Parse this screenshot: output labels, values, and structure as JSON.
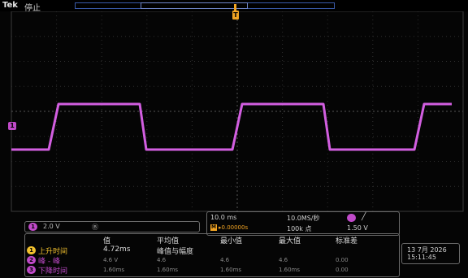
{
  "header": {
    "brand": "Tek",
    "run_state": "停止"
  },
  "markers": {
    "trigger_position": "T",
    "channel": "1"
  },
  "channel_readout": {
    "badge": "1",
    "scale": "2.0 V",
    "bandwidth": "Ⓑ"
  },
  "timebase": {
    "horizontal": "10.0 ms",
    "sample_rate": "10.0MS/秒",
    "trigger_badge": "1",
    "trigger_slope": "╱",
    "delay_icon": "M",
    "delay": "▸0.00000s",
    "record_length": "100k 点",
    "trigger_level": "1.50 V"
  },
  "measurements": {
    "headers": [
      "值",
      "平均值",
      "最小值",
      "最大值",
      "标准差"
    ],
    "rows": [
      {
        "badge": "1",
        "name": "上升时间",
        "values": [
          "4.72ms",
          "峰值与幅度",
          "",
          "",
          ""
        ],
        "channel_color": "#f2c12e"
      },
      {
        "badge": "2",
        "name": "峰 - 峰",
        "values": [
          "4.6 V",
          "4.6",
          "4.6",
          "4.6",
          "0.00"
        ],
        "channel_color": "#c04ac9"
      },
      {
        "badge": "3",
        "name": "下降时间",
        "values": [
          "1.60ms",
          "1.60ms",
          "1.60ms",
          "1.60ms",
          "0.00"
        ],
        "channel_color": "#c04ac9"
      }
    ]
  },
  "datetime": {
    "date": "13 7月 2026",
    "time": "15:11:45"
  },
  "colors": {
    "trace": "#d25ee0",
    "trigger": "#f2a423",
    "grid": "#2f2f2f"
  }
}
